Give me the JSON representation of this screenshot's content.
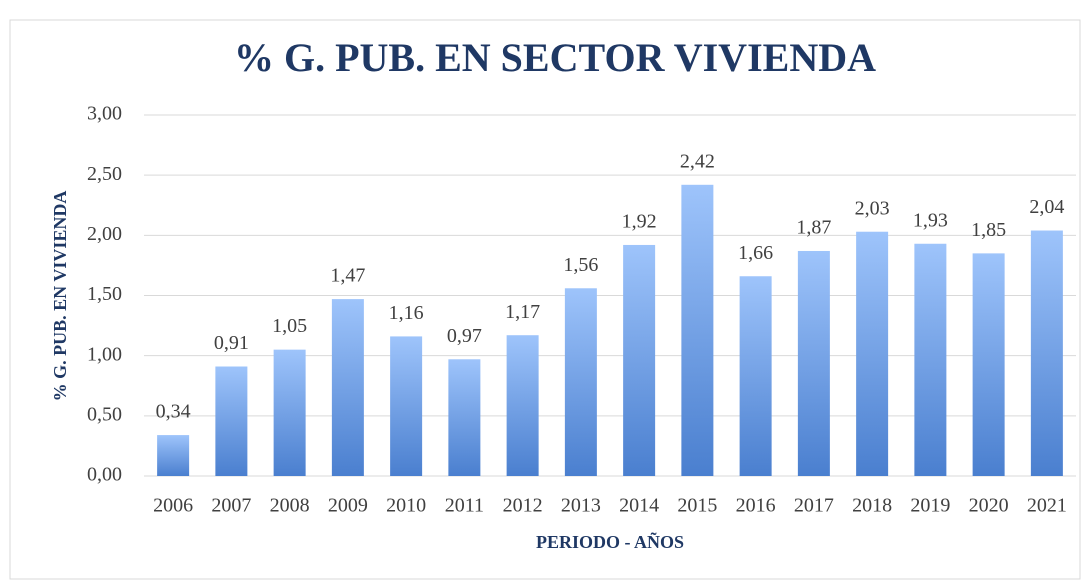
{
  "chart_data": {
    "type": "bar",
    "title": "% G. PUB. EN SECTOR VIVIENDA",
    "x_label": "PERIODO - AÑOS",
    "y_label": "% G. PUB. EN VIVIENDA",
    "categories": [
      "2006",
      "2007",
      "2008",
      "2009",
      "2010",
      "2011",
      "2012",
      "2013",
      "2014",
      "2015",
      "2016",
      "2017",
      "2018",
      "2019",
      "2020",
      "2021"
    ],
    "values": [
      0.34,
      0.91,
      1.05,
      1.47,
      1.16,
      0.97,
      1.17,
      1.56,
      1.92,
      2.42,
      1.66,
      1.87,
      2.03,
      1.93,
      1.85,
      2.04
    ],
    "value_labels": [
      "0,34",
      "0,91",
      "1,05",
      "1,47",
      "1,16",
      "0,97",
      "1,17",
      "1,56",
      "1,92",
      "2,42",
      "1,66",
      "1,87",
      "2,03",
      "1,93",
      "1,85",
      "2,04"
    ],
    "color": [
      "#9ec4fb",
      "#4a7fcf"
    ],
    "ylim": [
      0,
      3
    ],
    "yticks": [
      {
        "value": 0,
        "label": "0,00"
      },
      {
        "value": 0.5,
        "label": "0,50"
      },
      {
        "value": 1,
        "label": "1,00"
      },
      {
        "value": 1.5,
        "label": "1,50"
      },
      {
        "value": 2,
        "label": "2,00"
      },
      {
        "value": 2.5,
        "label": "2,50"
      },
      {
        "value": 3,
        "label": "3,00"
      }
    ],
    "grid": true
  }
}
